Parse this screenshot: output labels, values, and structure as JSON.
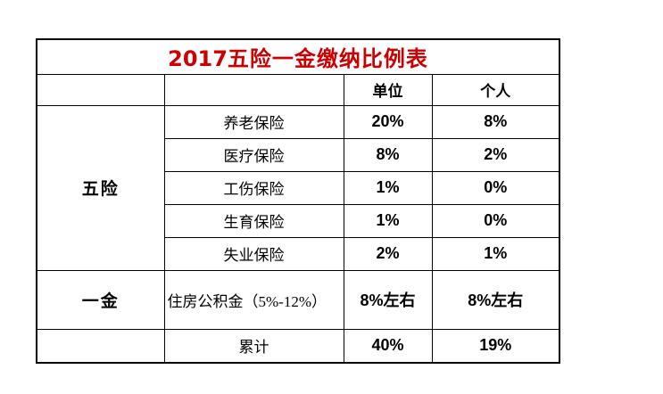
{
  "table": {
    "title": {
      "year": "2017",
      "name": "五险一金缴纳比例表",
      "color": "#cc0000"
    },
    "columns": {
      "employer": "单位",
      "personal": "个人"
    },
    "groups": {
      "five_insurances": "五险",
      "one_fund": "一金"
    },
    "insurance_rows": [
      {
        "name": "养老保险",
        "employer": "20%",
        "personal": "8%"
      },
      {
        "name": "医疗保险",
        "employer": "8%",
        "personal": "2%"
      },
      {
        "name": "工伤保险",
        "employer": "1%",
        "personal": "0%"
      },
      {
        "name": "生育保险",
        "employer": "1%",
        "personal": "0%"
      },
      {
        "name": "失业保险",
        "employer": "2%",
        "personal": "1%"
      }
    ],
    "fund_row": {
      "name": "住房公积金（5%-12%）",
      "employer": "8%左右",
      "personal": "8%左右"
    },
    "total_row": {
      "label": "累计",
      "employer": "40%",
      "personal": "19%"
    }
  },
  "chart_data": {
    "type": "table",
    "title": "2017五险一金缴纳比例表",
    "columns": [
      "",
      "",
      "单位",
      "个人"
    ],
    "rows": [
      [
        "五险",
        "养老保险",
        "20%",
        "8%"
      ],
      [
        "五险",
        "医疗保险",
        "8%",
        "2%"
      ],
      [
        "五险",
        "工伤保险",
        "1%",
        "0%"
      ],
      [
        "五险",
        "生育保险",
        "1%",
        "0%"
      ],
      [
        "五险",
        "失业保险",
        "2%",
        "1%"
      ],
      [
        "一金",
        "住房公积金（5%-12%）",
        "8%左右",
        "8%左右"
      ],
      [
        "",
        "累计",
        "40%",
        "19%"
      ]
    ]
  }
}
